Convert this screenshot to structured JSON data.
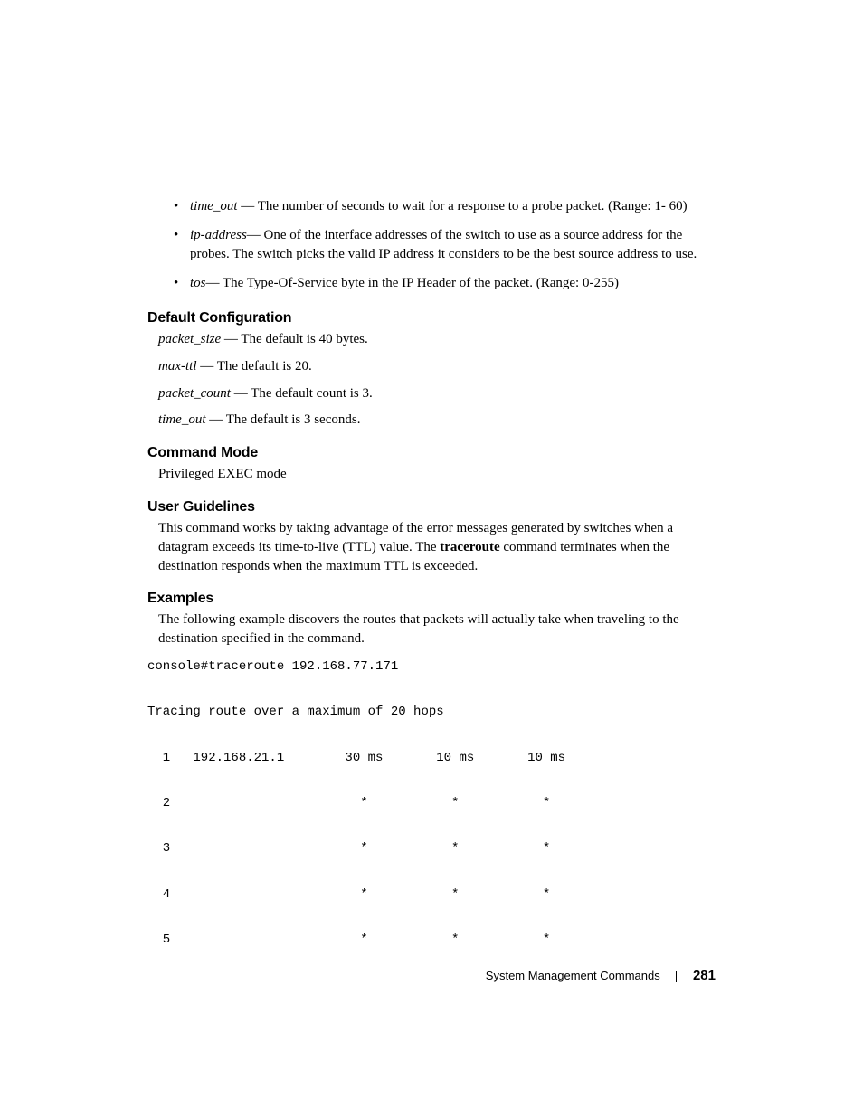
{
  "bullets": [
    {
      "term": "time_out",
      "text": " — The number of seconds to wait for a response to a probe packet. (Range: 1- 60)"
    },
    {
      "term": "ip-address",
      "text": "— One of the interface addresses of the switch to use as a source address for the probes. The switch picks the valid IP address it considers to be the best source address to use."
    },
    {
      "term": "tos",
      "text": "— The Type-Of-Service byte in the IP Header of the packet. (Range: 0-255)"
    }
  ],
  "sections": {
    "default_config": {
      "heading": "Default Configuration",
      "lines": [
        {
          "term": "packet_size",
          "rest": " — The default is 40 bytes."
        },
        {
          "term": "max-ttl",
          "rest": " — The default is 20."
        },
        {
          "term": "packet_count",
          "rest": " — The default count is 3."
        },
        {
          "term": "time_out",
          "rest": " — The default is 3 seconds."
        }
      ]
    },
    "command_mode": {
      "heading": "Command Mode",
      "text": "Privileged EXEC mode"
    },
    "user_guidelines": {
      "heading": "User Guidelines",
      "pre": "This command works by taking advantage of the error messages generated by switches when a datagram exceeds its time-to-live (TTL) value. The ",
      "bold": "traceroute",
      "post": " command terminates when the destination responds when the maximum TTL is exceeded."
    },
    "examples": {
      "heading": "Examples",
      "intro": "The following example discovers the routes that packets will actually take when traveling to the destination specified in the command.",
      "console": "console#traceroute 192.168.77.171\n\nTracing route over a maximum of 20 hops\n\n  1   192.168.21.1        30 ms       10 ms       10 ms\n\n  2                         *           *           *\n\n  3                         *           *           *\n\n  4                         *           *           *\n\n  5                         *           *           *"
    }
  },
  "footer": {
    "section": "System Management Commands",
    "page": "281"
  }
}
